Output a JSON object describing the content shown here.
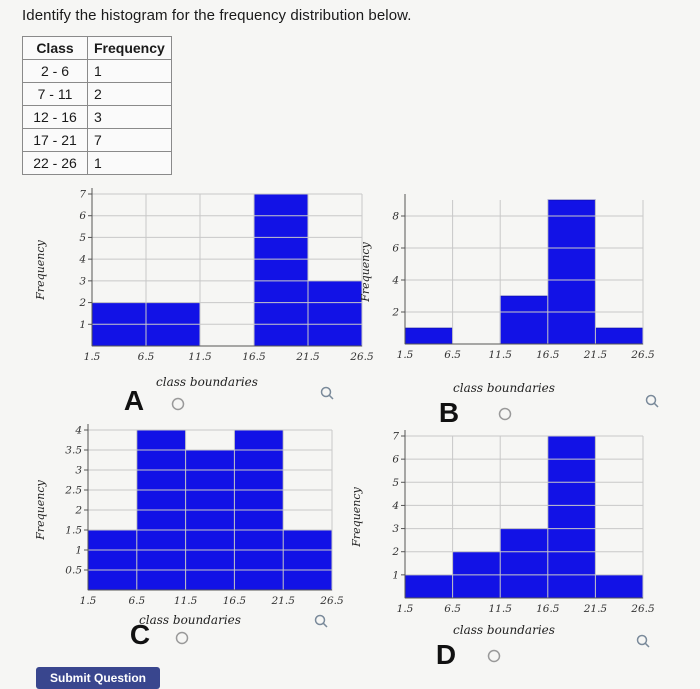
{
  "question": "Identify the histogram for the frequency distribution below.",
  "table": {
    "headers": [
      "Class",
      "Frequency"
    ],
    "rows": [
      [
        "2 - 6",
        "1"
      ],
      [
        "7 - 11",
        "2"
      ],
      [
        "12 - 16",
        "3"
      ],
      [
        "17 - 21",
        "7"
      ],
      [
        "22 - 26",
        "1"
      ]
    ]
  },
  "submit_label": "Submit Question",
  "colors": {
    "bar": "#1212e6",
    "grid": "#c8c8c8",
    "submit": "#39468e"
  },
  "chart_data": [
    {
      "type": "bar",
      "option": "A",
      "categories": [
        "1.5-6.5",
        "6.5-11.5",
        "11.5-16.5",
        "16.5-21.5",
        "21.5-26.5"
      ],
      "x_ticks": [
        "1.5",
        "6.5",
        "11.5",
        "16.5",
        "21.5",
        "26.5"
      ],
      "y_ticks": [
        "1",
        "2",
        "3",
        "4",
        "5",
        "6",
        "7"
      ],
      "values": [
        2,
        2,
        0,
        7,
        3
      ],
      "xlabel": "class boundaries",
      "ylabel": "Frequency",
      "ylim": [
        0,
        7
      ]
    },
    {
      "type": "bar",
      "option": "B",
      "categories": [
        "1.5-6.5",
        "6.5-11.5",
        "11.5-16.5",
        "16.5-21.5",
        "21.5-26.5"
      ],
      "x_ticks": [
        "1.5",
        "6.5",
        "11.5",
        "16.5",
        "21.5",
        "26.5"
      ],
      "y_ticks": [
        "2",
        "4",
        "6",
        "8"
      ],
      "values": [
        1,
        0,
        3,
        9,
        1
      ],
      "xlabel": "class boundaries",
      "ylabel": "Frequency",
      "ylim": [
        0,
        9
      ]
    },
    {
      "type": "bar",
      "option": "C",
      "categories": [
        "1.5-6.5",
        "6.5-11.5",
        "11.5-16.5",
        "16.5-21.5",
        "21.5-26.5"
      ],
      "x_ticks": [
        "1.5",
        "6.5",
        "11.5",
        "16.5",
        "21.5",
        "26.5"
      ],
      "y_ticks": [
        "0.5",
        "1",
        "1.5",
        "2",
        "2.5",
        "3",
        "3.5",
        "4"
      ],
      "values": [
        1.5,
        4,
        3.5,
        4,
        1.5
      ],
      "xlabel": "class boundaries",
      "ylabel": "Frequency",
      "ylim": [
        0,
        4
      ]
    },
    {
      "type": "bar",
      "option": "D",
      "categories": [
        "1.5-6.5",
        "6.5-11.5",
        "11.5-16.5",
        "16.5-21.5",
        "21.5-26.5"
      ],
      "x_ticks": [
        "1.5",
        "6.5",
        "11.5",
        "16.5",
        "21.5",
        "26.5"
      ],
      "y_ticks": [
        "1",
        "2",
        "3",
        "4",
        "5",
        "6",
        "7"
      ],
      "values": [
        1,
        2,
        3,
        7,
        1
      ],
      "xlabel": "class boundaries",
      "ylabel": "Frequency",
      "ylim": [
        0,
        7
      ]
    }
  ]
}
